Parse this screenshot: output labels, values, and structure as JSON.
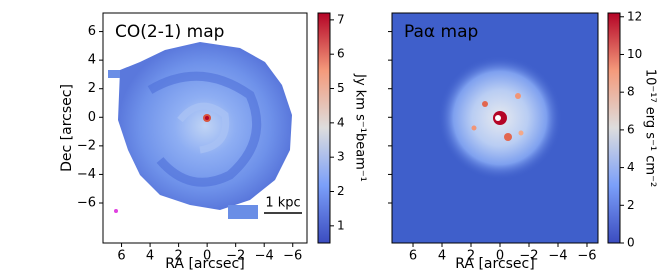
{
  "chart_data": [
    {
      "type": "image",
      "title": "CO(2-1) map",
      "xlabel": "RA [arcsec]",
      "ylabel": "Dec [arcsec]",
      "xlim": [
        7.3,
        -7.0
      ],
      "ylim": [
        -8.8,
        7.3
      ],
      "xticks": [
        6,
        4,
        2,
        0,
        {
          "value": -2,
          "label": "−2"
        },
        {
          "value": -4,
          "label": "−4"
        },
        {
          "value": -6,
          "label": "−6"
        }
      ],
      "yticks": [
        6,
        4,
        2,
        0,
        {
          "value": -2,
          "label": "−2"
        },
        {
          "value": -4,
          "label": "−4"
        },
        {
          "value": -6,
          "label": "−6"
        }
      ],
      "show_ytick_labels": true,
      "background": "#ffffff",
      "scale_bar": "1 kpc",
      "colorbar": {
        "label": "Jy km s⁻¹beam⁻¹",
        "lim": [
          0.5,
          7.2
        ],
        "ticks": [
          1,
          2,
          3,
          4,
          5,
          6,
          7
        ]
      }
    },
    {
      "type": "image",
      "title": "Paα map",
      "xlabel": "RA [arcsec]",
      "xlim": [
        7.45,
        -6.76
      ],
      "ylim": [
        -8.8,
        7.3
      ],
      "xticks": [
        6,
        4,
        2,
        0,
        {
          "value": -2,
          "label": "−2"
        },
        {
          "value": -4,
          "label": "−4"
        },
        {
          "value": -6,
          "label": "−6"
        }
      ],
      "yticks": [
        6,
        4,
        2,
        0,
        -2,
        -4,
        -6
      ],
      "show_ytick_labels": false,
      "background": "#3f5fcb",
      "colorbar": {
        "label": "10⁻¹⁷ erg s⁻¹ cm⁻²",
        "lim": [
          0,
          12.2
        ],
        "ticks": [
          0,
          2,
          4,
          6,
          8,
          10,
          12
        ]
      }
    }
  ]
}
